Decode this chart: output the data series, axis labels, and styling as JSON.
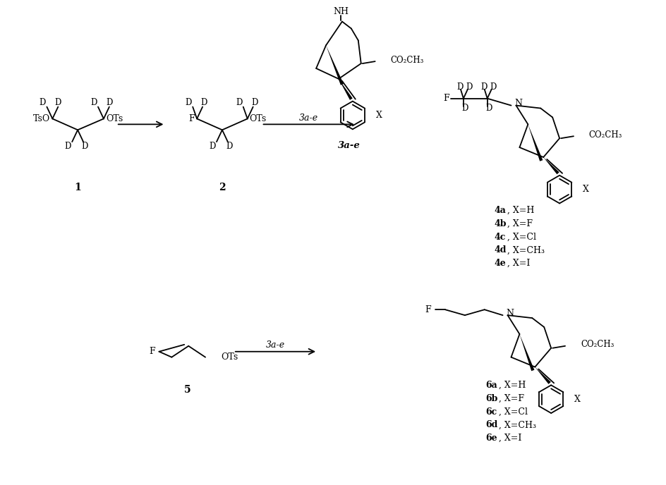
{
  "background": "#ffffff",
  "figsize": [
    9.45,
    6.88
  ],
  "dpi": 100,
  "comp4_list": [
    "4a, X=H",
    "4b, X=F",
    "4c, X=Cl",
    "4d, X=CH₃",
    "4e, X=I"
  ],
  "comp6_list": [
    "6a, X=H",
    "6b, X=F",
    "6c, X=Cl",
    "6d, X=CH₃",
    "6e, X=I"
  ]
}
